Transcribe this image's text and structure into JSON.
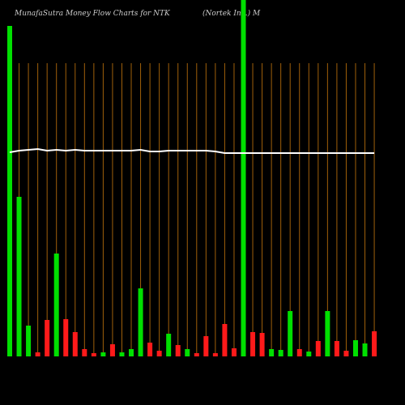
{
  "chart_data": {
    "type": "bar",
    "title": "MunafaSutra  Money Flow  Charts for NTK",
    "subtitle": "(Nortek Inc.) M",
    "ylim": [
      0,
      440
    ],
    "values": [
      408,
      197,
      38,
      5,
      45,
      127,
      46,
      30,
      9,
      4,
      5,
      15,
      5,
      9,
      84,
      17,
      7,
      28,
      14,
      9,
      4,
      25,
      4,
      40,
      10,
      440,
      30,
      29,
      9,
      8,
      56,
      9,
      6,
      19,
      56,
      19,
      7,
      20,
      16,
      31
    ],
    "colors": [
      "#00e000",
      "#00e000",
      "#00e000",
      "#ff1a1a",
      "#ff1a1a",
      "#00e000",
      "#ff1a1a",
      "#ff1a1a",
      "#ff1a1a",
      "#ff1a1a",
      "#00e000",
      "#ff1a1a",
      "#00e000",
      "#00e000",
      "#00e000",
      "#ff1a1a",
      "#ff1a1a",
      "#00e000",
      "#ff1a1a",
      "#00e000",
      "#ff1a1a",
      "#ff1a1a",
      "#ff1a1a",
      "#ff1a1a",
      "#ff1a1a",
      "#00e000",
      "#ff1a1a",
      "#ff1a1a",
      "#00e000",
      "#00e000",
      "#00e000",
      "#ff1a1a",
      "#00e000",
      "#ff1a1a",
      "#00e000",
      "#ff1a1a",
      "#ff1a1a",
      "#00e000",
      "#00e000",
      "#ff1a1a"
    ],
    "line": {
      "color": "#ffffff",
      "values": [
        252,
        254,
        255,
        256,
        254,
        255,
        254,
        255,
        254,
        254,
        254,
        254,
        254,
        254,
        255,
        253,
        253,
        254,
        254,
        254,
        254,
        254,
        253,
        251,
        251,
        251,
        251,
        251,
        251,
        251,
        251,
        251,
        251,
        251,
        251,
        251,
        251,
        251,
        251,
        251
      ]
    }
  }
}
